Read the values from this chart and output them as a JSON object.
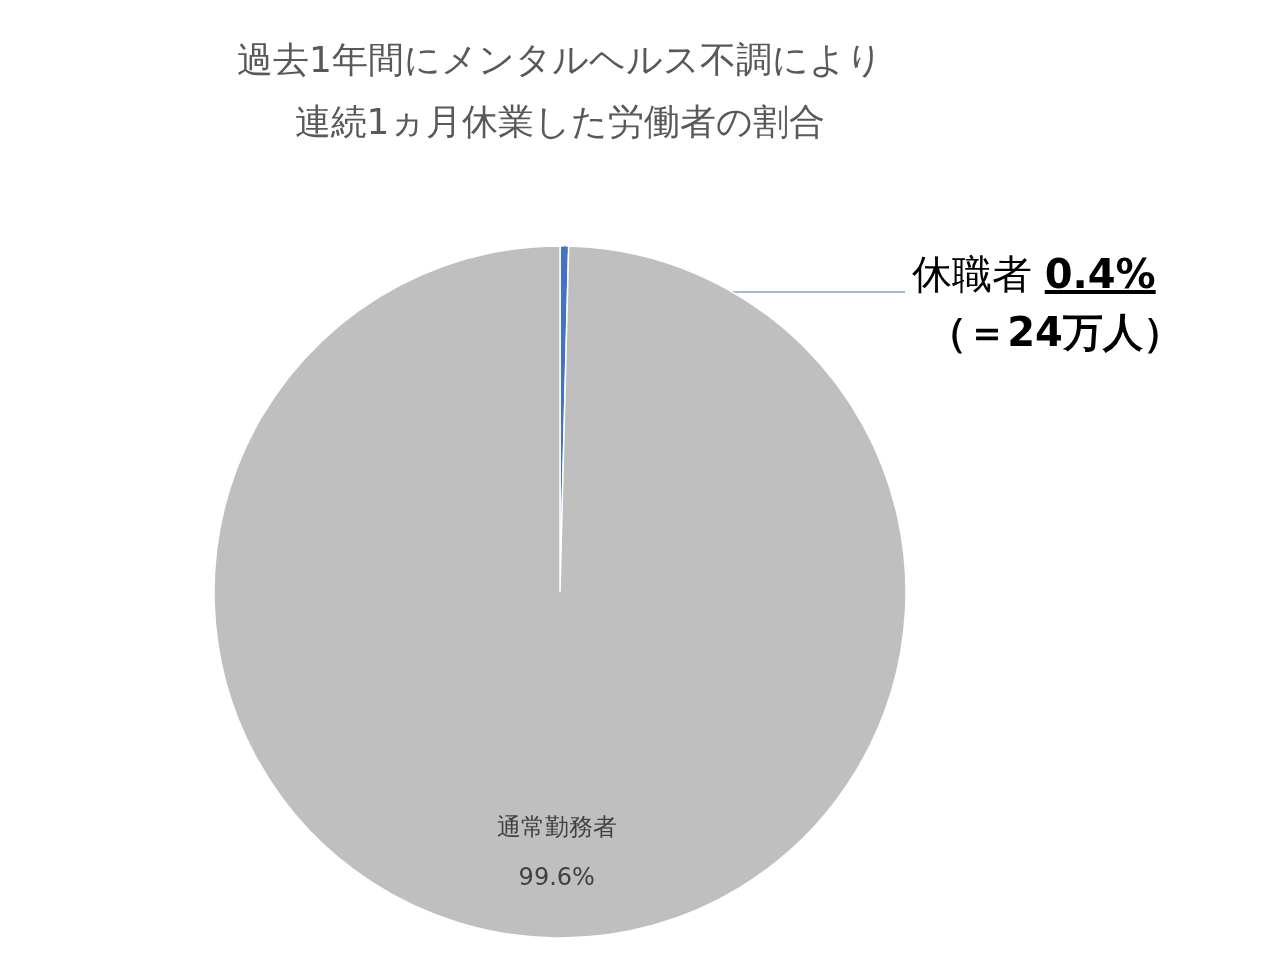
{
  "chart_data": {
    "type": "pie",
    "title": "過去1年間にメンタルヘルス不調により連続1ヵ月休業した労働者の割合",
    "categories": [
      "休職者",
      "通常勤務者"
    ],
    "values": [
      0.4,
      99.6
    ],
    "colors": [
      "#4472c4",
      "#bfbfbf"
    ],
    "value_labels": [
      "0.4%",
      "99.6%"
    ],
    "annotations": [
      "（＝24万人）"
    ]
  }
}
